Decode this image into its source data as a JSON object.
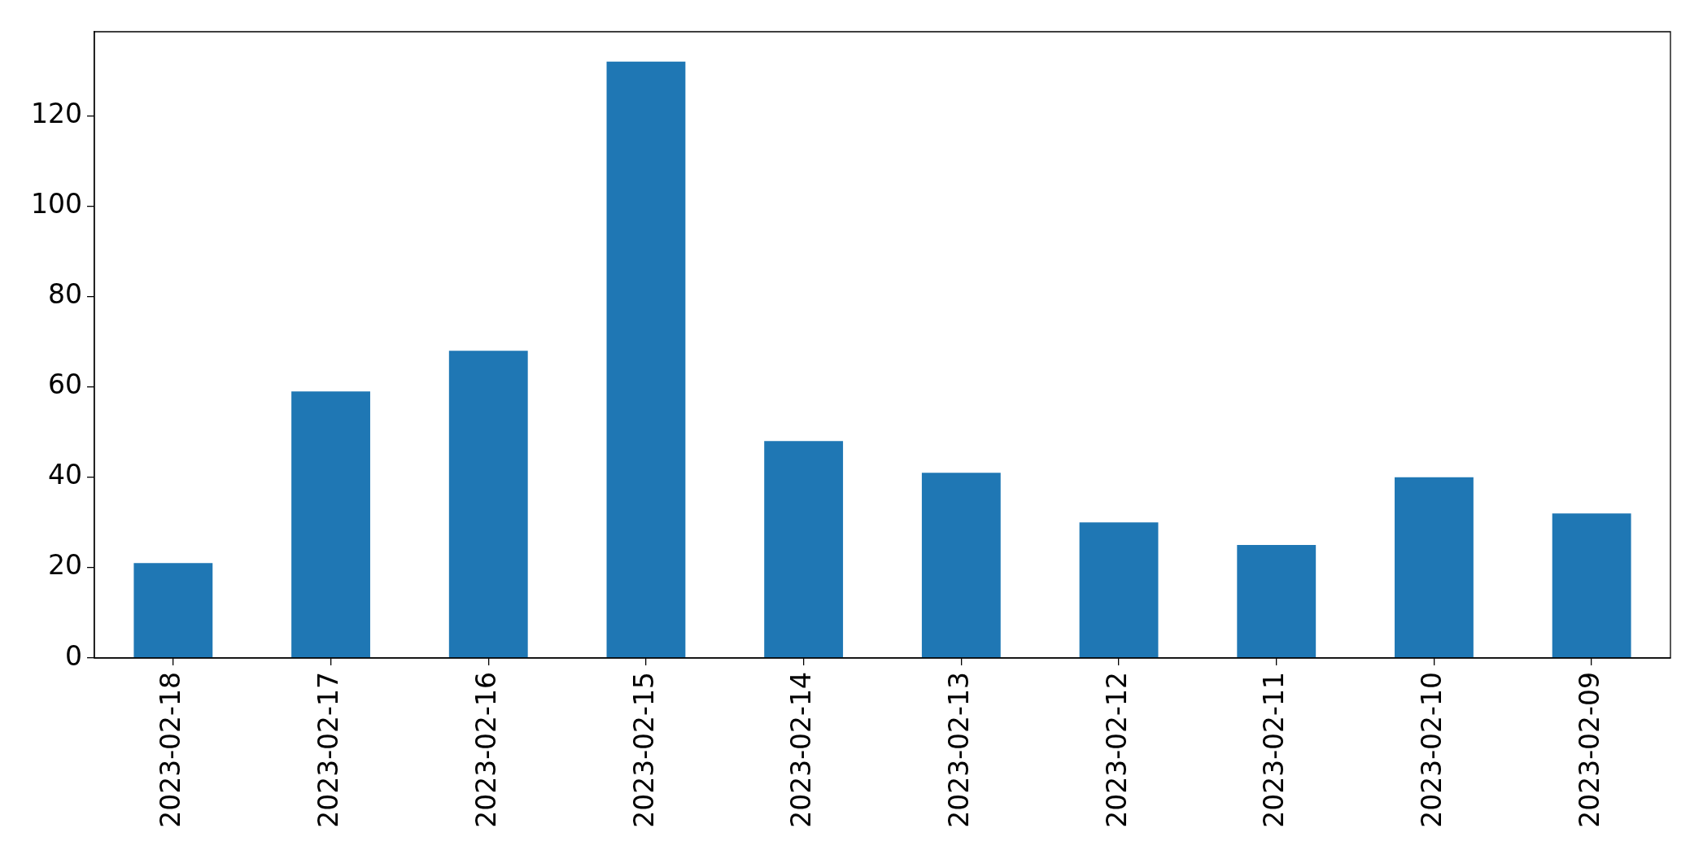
{
  "chart_data": {
    "type": "bar",
    "categories": [
      "2023-02-18",
      "2023-02-17",
      "2023-02-16",
      "2023-02-15",
      "2023-02-14",
      "2023-02-13",
      "2023-02-12",
      "2023-02-11",
      "2023-02-10",
      "2023-02-09"
    ],
    "values": [
      21,
      59,
      68,
      132,
      48,
      41,
      30,
      25,
      40,
      32
    ],
    "color": "#1f77b4",
    "ylim": [
      0,
      138.6
    ],
    "yticks": [
      0,
      20,
      40,
      60,
      80,
      100,
      120
    ]
  }
}
